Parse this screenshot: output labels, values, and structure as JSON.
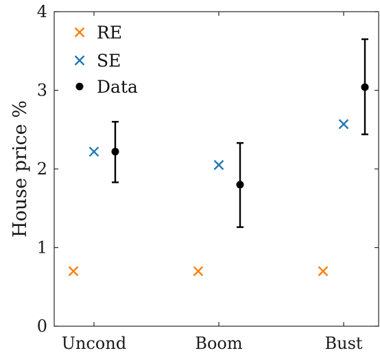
{
  "chart_data": {
    "type": "scatter",
    "title": "",
    "xlabel": "",
    "ylabel": "House price %",
    "categories": [
      "Uncond",
      "Boom",
      "Bust"
    ],
    "ylim": [
      0,
      4
    ],
    "yticks": [
      0,
      1,
      2,
      3,
      4
    ],
    "grid": false,
    "legend_position": "top-left",
    "series": [
      {
        "name": "RE",
        "marker": "x",
        "color": "#ff7f0e",
        "values": [
          0.7,
          0.7,
          0.7
        ]
      },
      {
        "name": "SE",
        "marker": "x",
        "color": "#1f77b4",
        "values": [
          2.22,
          2.05,
          2.57
        ]
      },
      {
        "name": "Data",
        "marker": "dot",
        "color": "#000000",
        "values": [
          2.22,
          1.8,
          3.04
        ],
        "error_low": [
          1.83,
          1.26,
          2.44
        ],
        "error_high": [
          2.6,
          2.33,
          3.65
        ]
      }
    ]
  }
}
